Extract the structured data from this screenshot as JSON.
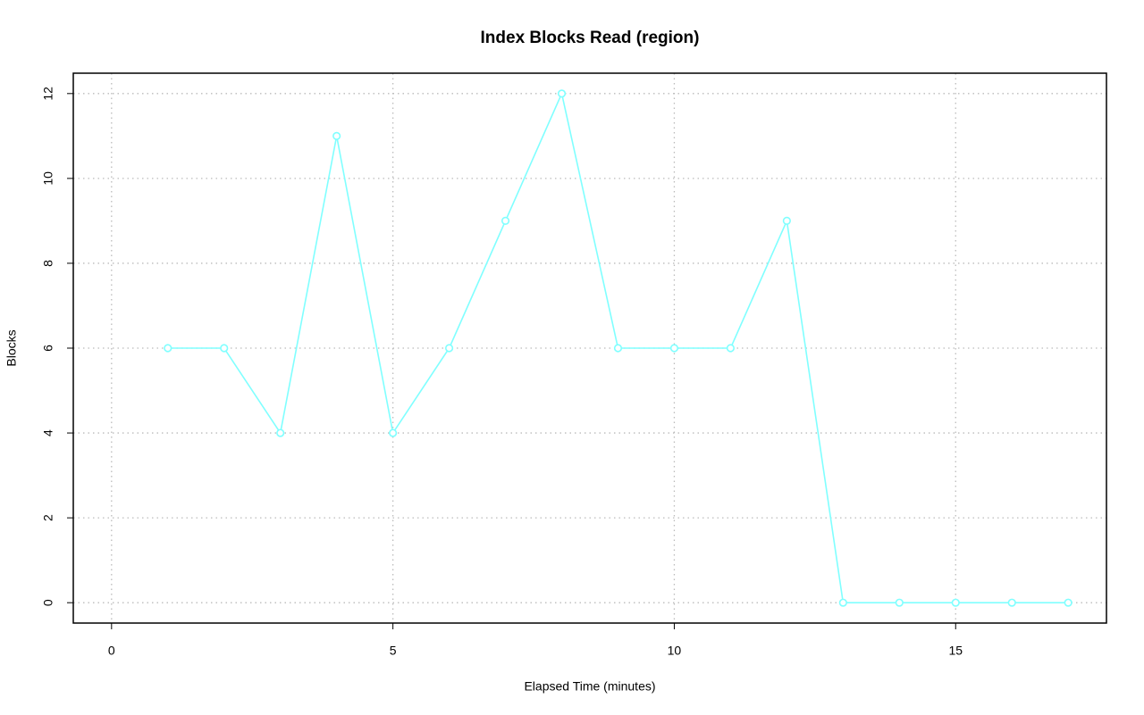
{
  "chart_data": {
    "type": "line",
    "title": "Index Blocks Read (region)",
    "x_label": "Elapsed Time (minutes)",
    "y_label": "Blocks",
    "x": [
      1,
      2,
      3,
      4,
      5,
      6,
      7,
      8,
      9,
      10,
      11,
      12,
      13,
      14,
      15,
      16,
      17
    ],
    "series": [
      {
        "color": "#80ffff",
        "values": [
          6,
          6,
          4,
          11,
          4,
          6,
          9,
          12,
          6,
          6,
          6,
          9,
          0,
          0,
          0,
          0,
          0
        ]
      }
    ],
    "xlim": [
      -0.68,
      17.68
    ],
    "xticks": [
      0,
      5,
      10,
      15
    ],
    "ylim": [
      -0.48,
      12.48
    ],
    "yticks": [
      0,
      2,
      4,
      6,
      8,
      10,
      12
    ],
    "grid": true
  }
}
